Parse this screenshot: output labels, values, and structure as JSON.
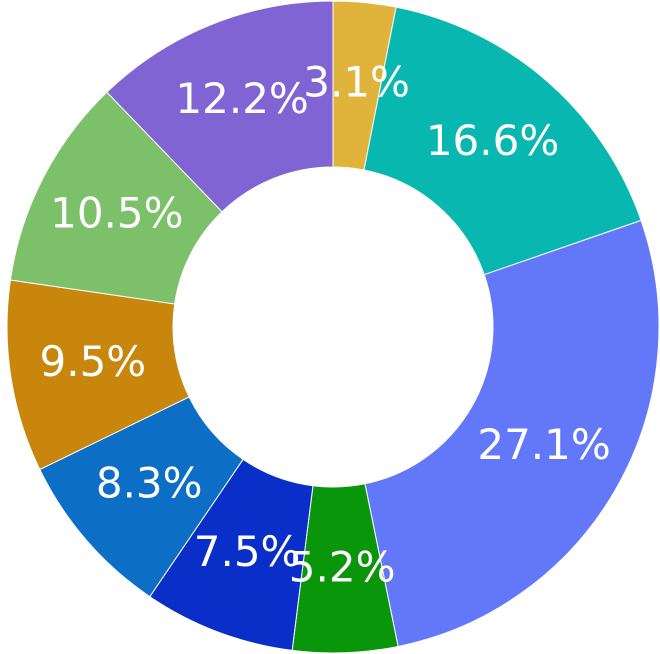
{
  "chart_data": {
    "type": "donut",
    "values": [
      3.1,
      16.6,
      27.1,
      5.2,
      7.5,
      8.3,
      9.5,
      10.5,
      12.2
    ],
    "value_labels": [
      "3.1%",
      "16.6%",
      "27.1%",
      "5.2%",
      "7.5%",
      "8.3%",
      "9.5%",
      "10.5%",
      "12.2%"
    ],
    "colors": [
      "#e0b43a",
      "#08b8b0",
      "#6278f8",
      "#0a960a",
      "#0a2ec8",
      "#0c6ec4",
      "#c8860c",
      "#7cc06a",
      "#8064d4"
    ]
  }
}
